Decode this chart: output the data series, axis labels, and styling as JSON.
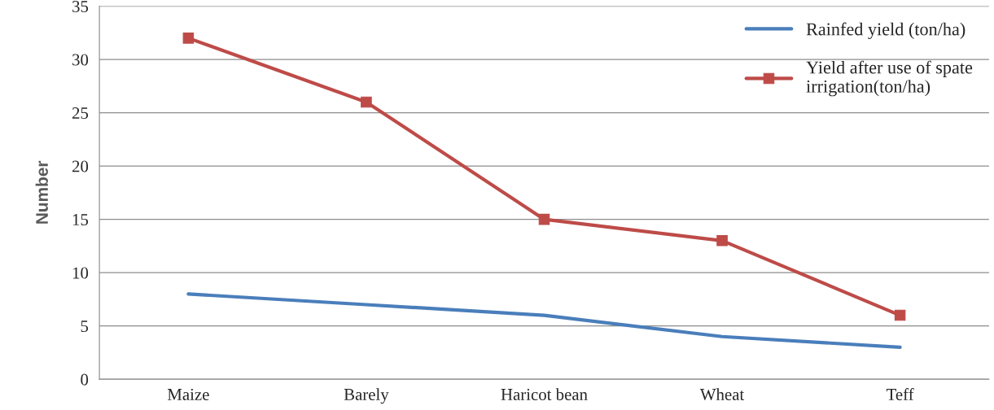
{
  "chart_data": {
    "type": "line",
    "ylabel": "Number",
    "categories": [
      "Maize",
      "Barely",
      "Haricot bean",
      "Wheat",
      "Teff"
    ],
    "series": [
      {
        "name": "Rainfed yield (ton/ha)",
        "color": "#4a7ebb",
        "marker": "none",
        "values": [
          8,
          7,
          6,
          4,
          3
        ]
      },
      {
        "name": "Yield after use of spate\nirrigation(ton/ha)",
        "color": "#be4b48",
        "marker": "square",
        "values": [
          32,
          26,
          15,
          13,
          6
        ]
      }
    ],
    "ylim": [
      0,
      35
    ],
    "yticks": [
      0,
      5,
      10,
      15,
      20,
      25,
      30,
      35
    ],
    "grid": "y",
    "legend": "top right",
    "line_style": "solid"
  }
}
